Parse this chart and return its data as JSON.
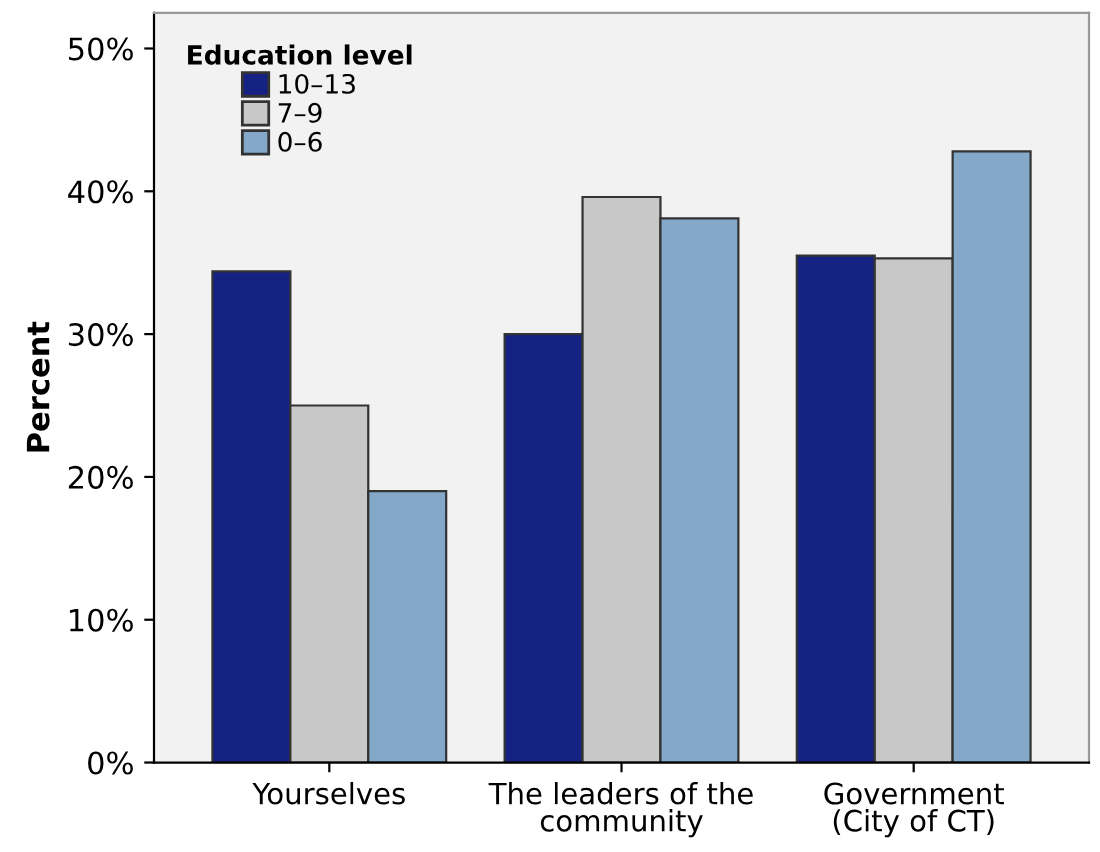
{
  "chart_data": {
    "type": "bar",
    "ylabel": "Percent",
    "legend_title": "Education level",
    "legend": "top left",
    "categories": [
      "Yourselves",
      "The leaders of the community",
      "Government (City of CT)"
    ],
    "series": [
      {
        "name": "10–13",
        "color": "#152183",
        "values": [
          34.4,
          30.0,
          35.5
        ]
      },
      {
        "name": "7–9",
        "color": "#c8c8c8",
        "values": [
          25.0,
          39.6,
          35.3
        ]
      },
      {
        "name": "0–6",
        "color": "#83a8c8",
        "values": [
          19.0,
          38.1,
          42.8
        ]
      }
    ],
    "ylim": [
      0,
      52.5
    ],
    "yticks": [
      {
        "value": 0,
        "label": "0%"
      },
      {
        "value": 10,
        "label": "10%"
      },
      {
        "value": 20,
        "label": "20%"
      },
      {
        "value": 30,
        "label": "30%"
      },
      {
        "value": 40,
        "label": "40%"
      },
      {
        "value": 50,
        "label": "50%"
      }
    ],
    "grid": false
  }
}
